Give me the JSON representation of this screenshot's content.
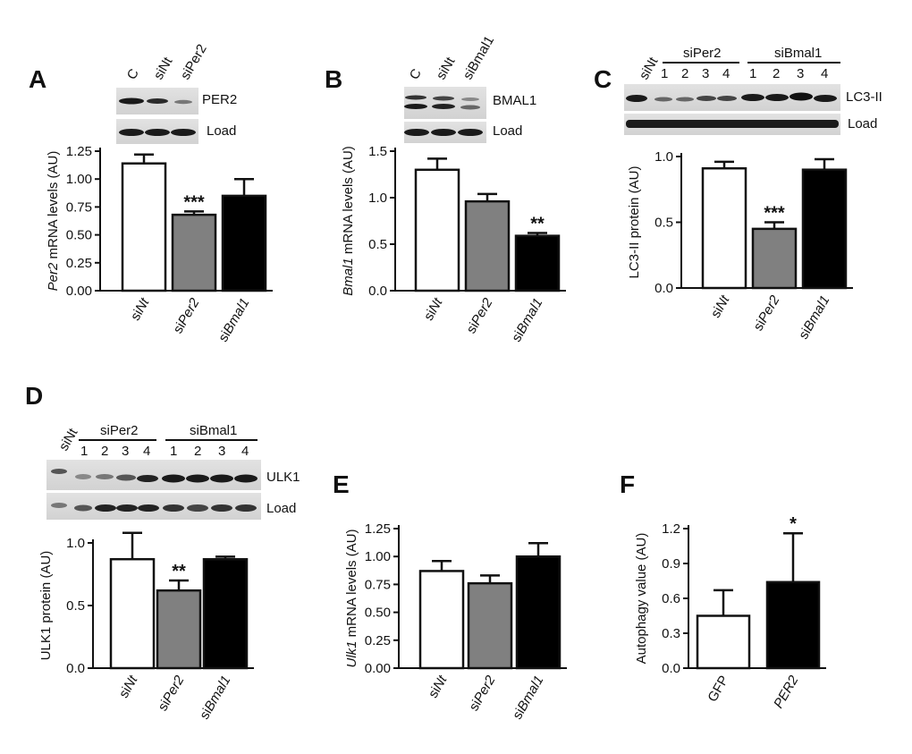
{
  "panels": {
    "A": {
      "label": "A",
      "blot_lanes": [
        "C",
        "siNt",
        "siPer2"
      ],
      "blot_bands": [
        "PER2",
        "Load"
      ]
    },
    "B": {
      "label": "B",
      "blot_lanes": [
        "C",
        "siNt",
        "siBmal1"
      ],
      "blot_bands": [
        "BMAL1",
        "Load"
      ]
    },
    "C": {
      "label": "C",
      "group1": "siPer2",
      "group2": "siBmal1",
      "ctrl": "siNt",
      "lanes": [
        "1",
        "2",
        "3",
        "4"
      ],
      "blot_bands": [
        "LC3-II",
        "Load"
      ]
    },
    "D": {
      "label": "D",
      "group1": "siPer2",
      "group2": "siBmal1",
      "ctrl": "siNt",
      "lanes": [
        "1",
        "2",
        "3",
        "4"
      ],
      "blot_bands": [
        "ULK1",
        "Load"
      ]
    },
    "E": {
      "label": "E"
    },
    "F": {
      "label": "F"
    }
  },
  "chart_data": [
    {
      "panel": "A",
      "type": "bar",
      "ylabel": "Per2 mRNA levels (AU)",
      "categories": [
        "siNt",
        "siPer2",
        "siBmal1"
      ],
      "values": [
        1.14,
        0.68,
        0.85
      ],
      "errors": [
        0.08,
        0.03,
        0.15
      ],
      "colors": [
        "#ffffff",
        "#808080",
        "#000000"
      ],
      "significance": [
        "",
        "***",
        ""
      ],
      "ylim": [
        0,
        1.25
      ],
      "yticks": [
        "0.00",
        "0.25",
        "0.50",
        "0.75",
        "1.00",
        "1.25"
      ]
    },
    {
      "panel": "B",
      "type": "bar",
      "ylabel": "Bmal1 mRNA levels (AU)",
      "categories": [
        "siNt",
        "siPer2",
        "siBmal1"
      ],
      "values": [
        1.3,
        0.96,
        0.59
      ],
      "errors": [
        0.12,
        0.08,
        0.03
      ],
      "colors": [
        "#ffffff",
        "#808080",
        "#000000"
      ],
      "significance": [
        "",
        "",
        "**"
      ],
      "ylim": [
        0,
        1.5
      ],
      "yticks": [
        "0.0",
        "0.5",
        "1.0",
        "1.5"
      ]
    },
    {
      "panel": "C",
      "type": "bar",
      "ylabel": "LC3-II protein (AU)",
      "categories": [
        "siNt",
        "siPer2",
        "siBmal1"
      ],
      "values": [
        0.91,
        0.45,
        0.9
      ],
      "errors": [
        0.05,
        0.05,
        0.08
      ],
      "colors": [
        "#ffffff",
        "#808080",
        "#000000"
      ],
      "significance": [
        "",
        "***",
        ""
      ],
      "ylim": [
        0,
        1.0
      ],
      "yticks": [
        "0.0",
        "0.5",
        "1.0"
      ]
    },
    {
      "panel": "D",
      "type": "bar",
      "ylabel": "ULK1 protein (AU)",
      "categories": [
        "siNt",
        "siPer2",
        "siBmal1"
      ],
      "values": [
        0.87,
        0.62,
        0.87
      ],
      "errors": [
        0.21,
        0.08,
        0.02
      ],
      "colors": [
        "#ffffff",
        "#808080",
        "#000000"
      ],
      "significance": [
        "",
        "**",
        ""
      ],
      "ylim": [
        0,
        1.0
      ],
      "yticks": [
        "0.0",
        "0.5",
        "1.0"
      ]
    },
    {
      "panel": "E",
      "type": "bar",
      "ylabel": "Ulk1 mRNA levels (AU)",
      "categories": [
        "siNt",
        "siPer2",
        "siBmal1"
      ],
      "values": [
        0.87,
        0.76,
        1.0
      ],
      "errors": [
        0.09,
        0.07,
        0.12
      ],
      "colors": [
        "#ffffff",
        "#808080",
        "#000000"
      ],
      "significance": [
        "",
        "",
        ""
      ],
      "ylim": [
        0,
        1.25
      ],
      "yticks": [
        "0.00",
        "0.25",
        "0.50",
        "0.75",
        "1.00",
        "1.25"
      ]
    },
    {
      "panel": "F",
      "type": "bar",
      "ylabel": "Autophagy value (AU)",
      "categories": [
        "GFP",
        "PER2"
      ],
      "values": [
        0.45,
        0.74
      ],
      "errors": [
        0.22,
        0.42
      ],
      "colors": [
        "#ffffff",
        "#000000"
      ],
      "significance": [
        "",
        "*"
      ],
      "ylim": [
        0,
        1.2
      ],
      "yticks": [
        "0.0",
        "0.3",
        "0.6",
        "0.9",
        "1.2"
      ]
    }
  ]
}
